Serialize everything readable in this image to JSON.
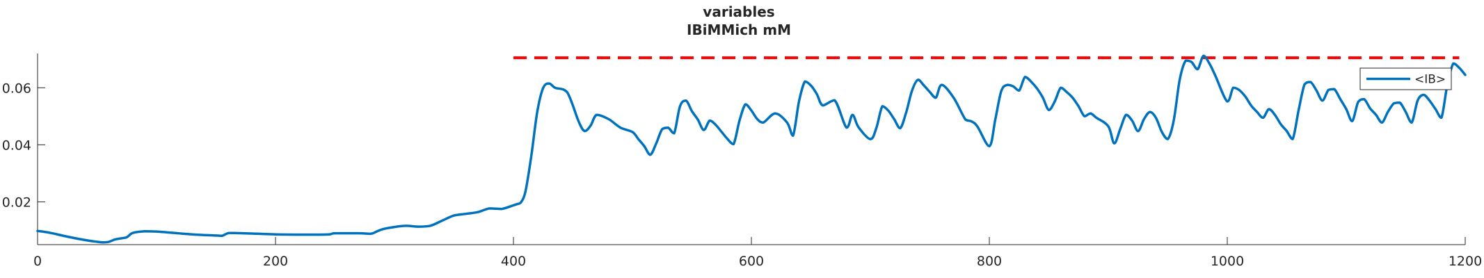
{
  "chart_data": {
    "type": "line",
    "title": [
      "variables",
      "IBiMMich mM"
    ],
    "xlabel": "",
    "ylabel": "",
    "xlim": [
      0,
      1200
    ],
    "ylim": [
      0.005,
      0.072
    ],
    "xticks": [
      0,
      200,
      400,
      600,
      800,
      1000,
      1200
    ],
    "xtick_labels": [
      "0",
      "200",
      "400",
      "600",
      "800",
      "1000",
      "1200"
    ],
    "yticks": [
      0.02,
      0.04,
      0.06
    ],
    "ytick_labels": [
      "0.02",
      "0.04",
      "0.06"
    ],
    "grid": false,
    "legend_position": "top-right",
    "colors": {
      "series": "#0072BD",
      "reference": "#FF0000",
      "axis": "#262626"
    },
    "reference_line": {
      "y": 0.0705,
      "x_start": 400,
      "x_end": 1195,
      "style": "dashed"
    },
    "series": [
      {
        "name": "<IB>",
        "x": [
          0,
          10,
          25,
          40,
          50,
          55,
          60,
          65,
          70,
          75,
          80,
          90,
          100,
          130,
          150,
          155,
          160,
          165,
          200,
          230,
          245,
          250,
          270,
          280,
          285,
          290,
          300,
          310,
          320,
          330,
          340,
          350,
          360,
          370,
          380,
          390,
          400,
          403,
          406,
          410,
          415,
          420,
          425,
          430,
          435,
          445,
          455,
          460,
          465,
          470,
          480,
          490,
          500,
          505,
          510,
          515,
          520,
          525,
          530,
          535,
          540,
          545,
          550,
          555,
          560,
          565,
          570,
          575,
          580,
          585,
          590,
          595,
          600,
          605,
          610,
          620,
          630,
          635,
          640,
          645,
          650,
          655,
          660,
          670,
          680,
          685,
          690,
          700,
          705,
          710,
          715,
          720,
          725,
          730,
          735,
          740,
          745,
          750,
          755,
          760,
          770,
          780,
          785,
          790,
          800,
          805,
          810,
          815,
          820,
          825,
          830,
          835,
          840,
          845,
          850,
          855,
          860,
          865,
          870,
          875,
          880,
          885,
          890,
          900,
          905,
          910,
          915,
          920,
          925,
          930,
          935,
          940,
          945,
          950,
          955,
          960,
          965,
          970,
          975,
          980,
          985,
          990,
          1000,
          1005,
          1010,
          1015,
          1020,
          1025,
          1030,
          1035,
          1040,
          1045,
          1050,
          1055,
          1060,
          1065,
          1070,
          1075,
          1080,
          1085,
          1090,
          1095,
          1100,
          1105,
          1110,
          1115,
          1120,
          1125,
          1130,
          1135,
          1140,
          1145,
          1150,
          1155,
          1160,
          1165,
          1170,
          1175,
          1180,
          1185,
          1190,
          1195,
          1200
        ],
        "values": [
          0.0098,
          0.0092,
          0.0078,
          0.0066,
          0.006,
          0.0058,
          0.006,
          0.0068,
          0.0072,
          0.0076,
          0.0091,
          0.0097,
          0.0096,
          0.0086,
          0.0082,
          0.0081,
          0.009,
          0.0091,
          0.0086,
          0.0085,
          0.0086,
          0.009,
          0.009,
          0.0088,
          0.0096,
          0.0104,
          0.0112,
          0.0116,
          0.0113,
          0.0116,
          0.0134,
          0.0152,
          0.0158,
          0.0164,
          0.0177,
          0.0175,
          0.0188,
          0.0192,
          0.0197,
          0.0235,
          0.036,
          0.0515,
          0.06,
          0.0615,
          0.06,
          0.0585,
          0.048,
          0.0448,
          0.0468,
          0.0505,
          0.049,
          0.046,
          0.0445,
          0.042,
          0.0395,
          0.0365,
          0.0405,
          0.0455,
          0.046,
          0.044,
          0.0535,
          0.0555,
          0.0518,
          0.0488,
          0.0452,
          0.0485,
          0.047,
          0.0445,
          0.042,
          0.0402,
          0.0485,
          0.0542,
          0.052,
          0.049,
          0.0478,
          0.051,
          0.0478,
          0.0432,
          0.0552,
          0.0622,
          0.0608,
          0.0578,
          0.0538,
          0.0556,
          0.046,
          0.0505,
          0.0462,
          0.042,
          0.0458,
          0.0535,
          0.052,
          0.049,
          0.0458,
          0.0512,
          0.059,
          0.0628,
          0.0608,
          0.0585,
          0.0565,
          0.061,
          0.0565,
          0.0488,
          0.0482,
          0.0464,
          0.0395,
          0.0488,
          0.0588,
          0.061,
          0.0605,
          0.059,
          0.0638,
          0.0622,
          0.0598,
          0.0565,
          0.0522,
          0.0552,
          0.06,
          0.0585,
          0.0565,
          0.0535,
          0.05,
          0.051,
          0.0495,
          0.0465,
          0.0405,
          0.0455,
          0.0505,
          0.0485,
          0.0448,
          0.049,
          0.0515,
          0.0495,
          0.0445,
          0.042,
          0.0485,
          0.0628,
          0.0695,
          0.069,
          0.0665,
          0.0712,
          0.0685,
          0.0642,
          0.0552,
          0.06,
          0.0592,
          0.057,
          0.0538,
          0.0515,
          0.0495,
          0.0525,
          0.0505,
          0.0472,
          0.0448,
          0.042,
          0.0522,
          0.0612,
          0.062,
          0.059,
          0.0555,
          0.0592,
          0.0595,
          0.056,
          0.0525,
          0.0483,
          0.055,
          0.056,
          0.0528,
          0.0505,
          0.0478,
          0.0515,
          0.0545,
          0.0548,
          0.0515,
          0.0478,
          0.0555,
          0.0575,
          0.0555,
          0.0525,
          0.0495,
          0.0612,
          0.0685,
          0.067,
          0.0645
        ]
      }
    ]
  }
}
